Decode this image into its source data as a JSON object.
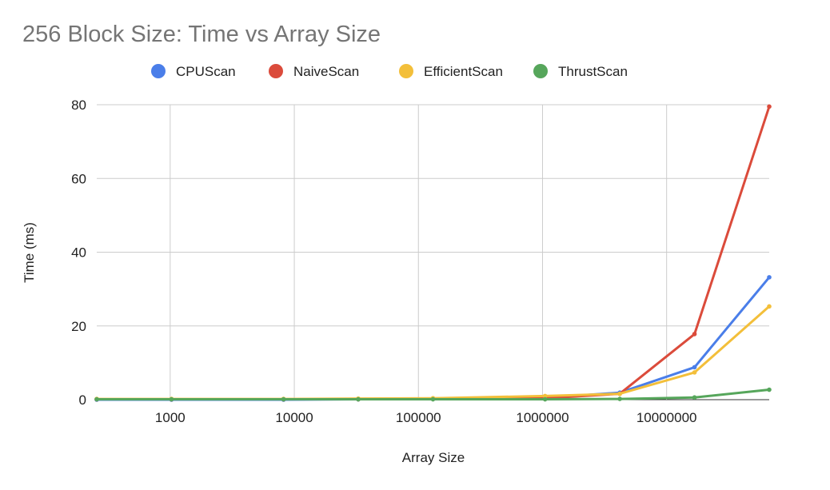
{
  "chart_data": {
    "type": "line",
    "title": "256 Block Size: Time vs Array Size",
    "xlabel": "Array Size",
    "ylabel": "Time (ms)",
    "x_scale": "log",
    "x": [
      256,
      1024,
      8192,
      32768,
      131072,
      1048576,
      4194304,
      16777216,
      67108864
    ],
    "x_ticks": [
      1000,
      10000,
      100000,
      1000000,
      10000000
    ],
    "x_tick_labels": [
      "1000",
      "10000",
      "100000",
      "1000000",
      "10000000"
    ],
    "ylim": [
      0,
      80
    ],
    "y_ticks": [
      0,
      20,
      40,
      60,
      80
    ],
    "y_tick_labels": [
      "0",
      "20",
      "40",
      "60",
      "80"
    ],
    "grid": true,
    "legend_position": "top",
    "series": [
      {
        "name": "CPUScan",
        "color": "#4a7ee9",
        "values": [
          0.0,
          0.0,
          0.0,
          0.1,
          0.2,
          0.5,
          1.9,
          8.8,
          33.2
        ]
      },
      {
        "name": "NaiveScan",
        "color": "#db4b3b",
        "values": [
          0.1,
          0.1,
          0.1,
          0.1,
          0.2,
          0.4,
          1.6,
          17.8,
          79.5
        ]
      },
      {
        "name": "EfficientScan",
        "color": "#f3bf3a",
        "values": [
          0.2,
          0.2,
          0.2,
          0.3,
          0.4,
          1.0,
          1.6,
          7.4,
          25.3
        ]
      },
      {
        "name": "ThrustScan",
        "color": "#56a65b",
        "values": [
          0.1,
          0.1,
          0.1,
          0.1,
          0.1,
          0.1,
          0.2,
          0.6,
          2.7
        ]
      }
    ]
  }
}
